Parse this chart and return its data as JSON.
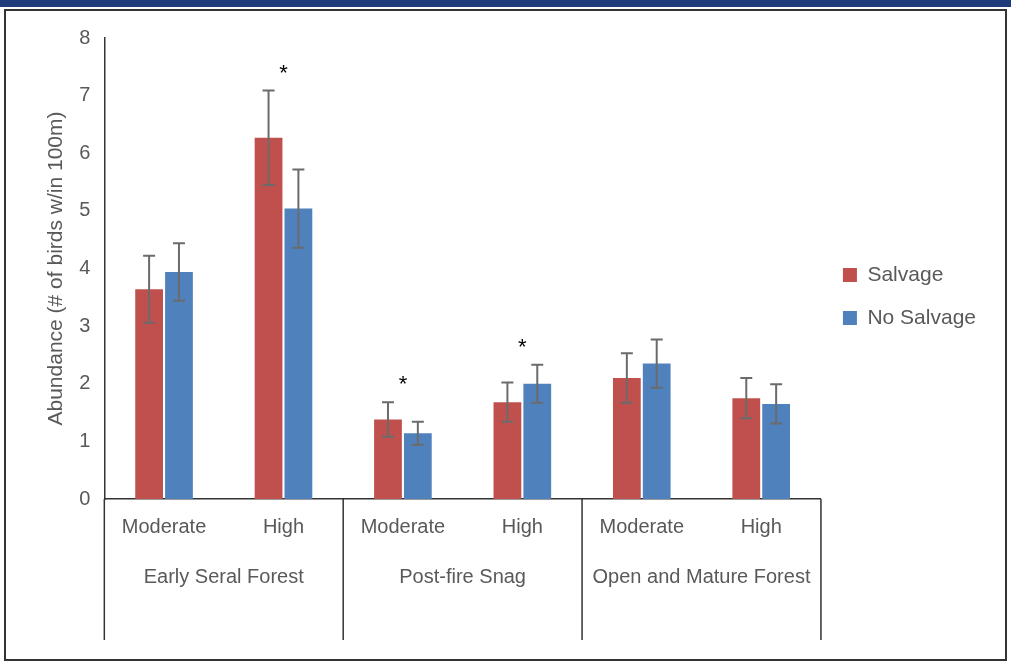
{
  "chart_data": {
    "type": "bar",
    "categories": [
      "Moderate",
      "High",
      "Moderate",
      "High",
      "Moderate",
      "High"
    ],
    "ylabel": "Abundance (# of birds w/in 100m)",
    "ylim": [
      0,
      8
    ],
    "yticks": [
      0,
      1,
      2,
      3,
      4,
      5,
      6,
      7,
      8
    ],
    "grid": false,
    "legend": "right",
    "annotations": [
      "Early Seral Forest",
      "Post-fire Snag",
      "Open and Mature Forest"
    ],
    "series": [
      {
        "name": "Salvage",
        "color": "#c0504d",
        "values": [
          3.64,
          6.27,
          1.38,
          1.68,
          2.1,
          1.75
        ],
        "errors": [
          0.58,
          0.82,
          0.3,
          0.34,
          0.43,
          0.35
        ],
        "value_labels": [
          null,
          "*",
          "*",
          "*",
          null,
          null
        ]
      },
      {
        "name": "No Salvage",
        "color": "#4f81bd",
        "values": [
          3.94,
          5.04,
          1.14,
          2.0,
          2.35,
          1.65
        ],
        "errors": [
          0.5,
          0.68,
          0.2,
          0.33,
          0.42,
          0.34
        ]
      }
    ]
  }
}
